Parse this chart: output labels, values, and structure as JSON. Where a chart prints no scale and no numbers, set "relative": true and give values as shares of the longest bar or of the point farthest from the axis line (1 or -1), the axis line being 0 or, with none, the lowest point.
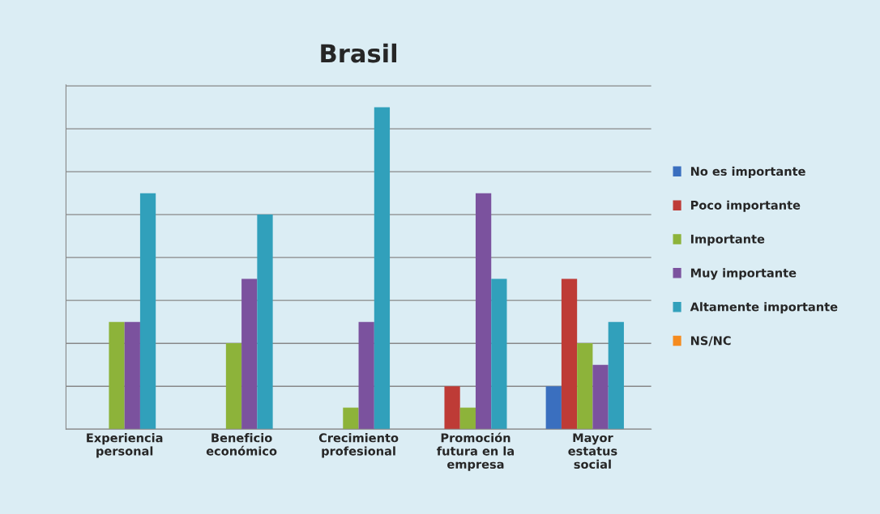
{
  "chart_data": {
    "type": "bar",
    "title": "Brasil",
    "relative": true,
    "grid": "y",
    "legend": "right",
    "categories": [
      "Experiencia personal",
      "Beneficio económico",
      "Crecimiento profesional",
      "Promoción futura en la empresa",
      "Mayor estatus social"
    ],
    "series": [
      {
        "name": "No es importante",
        "color": "#3a6fbf",
        "values": [
          null,
          null,
          null,
          null,
          0.133
        ]
      },
      {
        "name": "Poco importante",
        "color": "#be3b36",
        "values": [
          null,
          null,
          null,
          0.133,
          0.467
        ]
      },
      {
        "name": "Importante",
        "color": "#8db33a",
        "values": [
          0.333,
          0.267,
          0.067,
          0.067,
          0.267
        ]
      },
      {
        "name": "Muy importante",
        "color": "#7b529e",
        "values": [
          0.333,
          0.467,
          0.333,
          0.733,
          0.2
        ]
      },
      {
        "name": "Altamente importante",
        "color": "#31a0bb",
        "values": [
          0.733,
          0.667,
          1,
          0.467,
          0.333
        ]
      },
      {
        "name": "NS/NC",
        "color": "#f58b1f",
        "values": [
          null,
          null,
          null,
          null,
          null
        ]
      }
    ]
  }
}
